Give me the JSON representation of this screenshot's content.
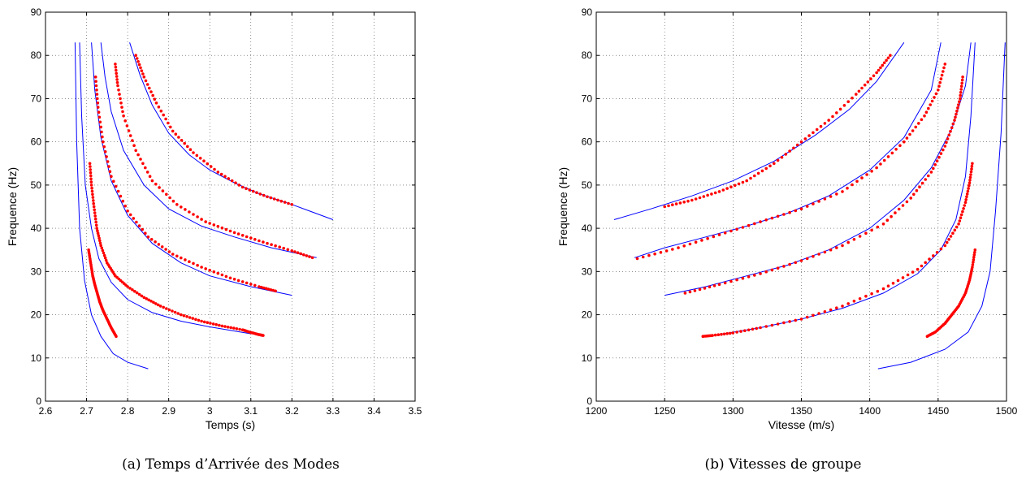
{
  "colors": {
    "fit": "#0000ff",
    "observed": "#ff0000"
  },
  "chart_data": [
    {
      "type": "scatter",
      "caption": "(a) Temps d’Arrivée des Modes",
      "xlabel": "Temps (s)",
      "ylabel": "Frequence (Hz)",
      "xlim": [
        2.6,
        3.5
      ],
      "ylim": [
        0,
        90
      ],
      "xticks": [
        "2.6",
        "2.7",
        "2.8",
        "2.9",
        "3",
        "3.1",
        "3.2",
        "3.3",
        "3.4",
        "3.5"
      ],
      "yticks": [
        "0",
        "10",
        "20",
        "30",
        "40",
        "50",
        "60",
        "70",
        "80",
        "90"
      ],
      "grid": true,
      "fit_series": [
        {
          "x": [
            2.672,
            2.676,
            2.683,
            2.695,
            2.712,
            2.735,
            2.765,
            2.8,
            2.85
          ],
          "y": [
            83,
            60,
            40,
            28,
            20,
            15,
            11,
            9,
            7.5
          ]
        },
        {
          "x": [
            2.683,
            2.688,
            2.697,
            2.712,
            2.73,
            2.76,
            2.8,
            2.86,
            2.93,
            3.0,
            3.1
          ],
          "y": [
            83,
            66,
            50,
            40,
            33,
            27.5,
            23.5,
            20.5,
            18.5,
            17.2,
            15.6
          ]
        },
        {
          "x": [
            2.712,
            2.72,
            2.735,
            2.76,
            2.8,
            2.86,
            2.93,
            3.0,
            3.1,
            3.2
          ],
          "y": [
            83,
            72,
            61,
            51,
            43,
            36.5,
            32,
            29,
            26.5,
            24.5
          ]
        },
        {
          "x": [
            2.735,
            2.745,
            2.76,
            2.79,
            2.84,
            2.9,
            2.98,
            3.06,
            3.15,
            3.26
          ],
          "y": [
            83,
            75,
            67,
            58,
            50,
            44.5,
            40.5,
            38,
            35.5,
            33.2
          ]
        },
        {
          "x": [
            2.805,
            2.83,
            2.86,
            2.9,
            2.95,
            3.0,
            3.06,
            3.12,
            3.2,
            3.3
          ],
          "y": [
            83,
            75.5,
            68.5,
            62,
            57,
            53.5,
            50.5,
            48,
            45.5,
            42
          ]
        }
      ],
      "observed_series": [
        {
          "x": [
            2.705,
            2.71,
            2.715,
            2.72,
            2.726,
            2.732,
            2.74,
            2.75,
            2.76,
            2.772
          ],
          "y": [
            35,
            32,
            29,
            27,
            25,
            23,
            21,
            19,
            17,
            15
          ]
        },
        {
          "x": [
            2.708,
            2.712,
            2.718,
            2.725,
            2.735,
            2.75,
            2.77,
            2.8,
            2.84,
            2.88,
            2.93,
            2.98,
            3.03,
            3.08,
            3.1,
            3.12,
            3.13
          ],
          "y": [
            55,
            50,
            45,
            40,
            36,
            32,
            29,
            26.5,
            24,
            22,
            20,
            18.5,
            17.4,
            16.5,
            15.9,
            15.4,
            15.2
          ]
        },
        {
          "x": [
            2.722,
            2.728,
            2.74,
            2.76,
            2.8,
            2.85,
            2.91,
            2.98,
            3.05,
            3.12,
            3.16
          ],
          "y": [
            75,
            68,
            60,
            52,
            44,
            38,
            34,
            31,
            28.5,
            26.5,
            25.5
          ]
        },
        {
          "x": [
            2.77,
            2.776,
            2.79,
            2.82,
            2.86,
            2.92,
            2.99,
            3.06,
            3.13,
            3.2,
            3.25
          ],
          "y": [
            78,
            73,
            66,
            58,
            51,
            45.5,
            41.5,
            39,
            36.8,
            34.8,
            33.2
          ]
        },
        {
          "x": [
            2.82,
            2.84,
            2.87,
            2.91,
            2.96,
            3.02,
            3.08,
            3.14,
            3.2
          ],
          "y": [
            80,
            75,
            69,
            62.5,
            57.5,
            53,
            49.5,
            47.3,
            45.5
          ]
        }
      ]
    },
    {
      "type": "scatter",
      "caption": "(b) Vitesses de groupe",
      "xlabel": "Vitesse (m/s)",
      "ylabel": "Frequence (Hz)",
      "xlim": [
        1200,
        1500
      ],
      "ylim": [
        0,
        90
      ],
      "xticks": [
        "1200",
        "1250",
        "1300",
        "1350",
        "1400",
        "1450",
        "1500"
      ],
      "yticks": [
        "0",
        "10",
        "20",
        "30",
        "40",
        "50",
        "60",
        "70",
        "80",
        "90"
      ],
      "grid": true,
      "fit_series": [
        {
          "x": [
            1213,
            1240,
            1270,
            1300,
            1330,
            1360,
            1385,
            1405,
            1425
          ],
          "y": [
            42,
            44.5,
            47.5,
            51,
            55.5,
            61.5,
            67.5,
            74,
            83
          ]
        },
        {
          "x": [
            1228,
            1250,
            1280,
            1310,
            1340,
            1370,
            1400,
            1425,
            1445,
            1452
          ],
          "y": [
            33.2,
            35.5,
            38,
            40.5,
            43.5,
            47.5,
            53.5,
            61,
            72,
            83
          ]
        },
        {
          "x": [
            1250,
            1280,
            1310,
            1340,
            1370,
            1400,
            1425,
            1445,
            1460,
            1470,
            1474
          ],
          "y": [
            24.5,
            26.5,
            29,
            31.5,
            35,
            40,
            46.5,
            54,
            63,
            73,
            83
          ]
        },
        {
          "x": [
            1291,
            1320,
            1350,
            1380,
            1410,
            1435,
            1452,
            1463,
            1470,
            1474,
            1477
          ],
          "y": [
            15.5,
            17,
            19,
            21.5,
            25,
            29.5,
            35,
            42,
            52,
            66,
            83
          ]
        },
        {
          "x": [
            1406,
            1430,
            1455,
            1472,
            1482,
            1488,
            1492,
            1496,
            1499
          ],
          "y": [
            7.5,
            9,
            12,
            16,
            22,
            30,
            44,
            62,
            83
          ]
        }
      ],
      "observed_series": [
        {
          "x": [
            1250,
            1270,
            1290,
            1310,
            1330,
            1350,
            1370,
            1390,
            1405,
            1415
          ],
          "y": [
            45,
            46.5,
            48.5,
            51,
            55,
            60,
            65,
            71,
            76,
            80
          ]
        },
        {
          "x": [
            1230,
            1260,
            1290,
            1320,
            1350,
            1380,
            1405,
            1425,
            1440,
            1450,
            1455
          ],
          "y": [
            33,
            35.5,
            38.5,
            41.5,
            44.5,
            48.5,
            54,
            60,
            66,
            72,
            78
          ]
        },
        {
          "x": [
            1265,
            1290,
            1320,
            1350,
            1380,
            1410,
            1430,
            1445,
            1455,
            1462,
            1466,
            1468
          ],
          "y": [
            25,
            27,
            29.5,
            32.5,
            36,
            41,
            47,
            53,
            59,
            65,
            70,
            75
          ]
        },
        {
          "x": [
            1278,
            1285,
            1300,
            1320,
            1350,
            1380,
            1410,
            1435,
            1455,
            1465,
            1470,
            1473,
            1475
          ],
          "y": [
            15,
            15.2,
            15.8,
            17,
            19,
            22,
            26,
            30.5,
            36,
            41,
            46,
            50.5,
            55
          ]
        },
        {
          "x": [
            1442,
            1448,
            1455,
            1460,
            1465,
            1470,
            1473,
            1475,
            1477
          ],
          "y": [
            15,
            16,
            18,
            20,
            22,
            25,
            28,
            31,
            35
          ]
        }
      ]
    }
  ]
}
